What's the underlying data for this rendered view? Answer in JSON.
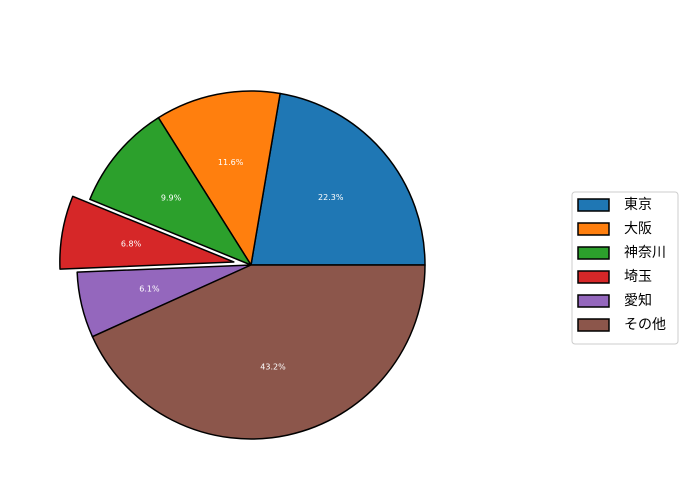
{
  "chart_data": {
    "type": "pie",
    "categories": [
      "東京",
      "大阪",
      "神奈川",
      "埼玉",
      "愛知",
      "その他"
    ],
    "values": [
      22.3,
      11.6,
      9.9,
      6.8,
      6.1,
      43.2
    ],
    "value_labels": [
      "22.3%",
      "11.6%",
      "9.9%",
      "6.8%",
      "6.1%",
      "43.2%"
    ],
    "colors": [
      "#1f77b4",
      "#ff7f0e",
      "#2ca02c",
      "#d62728",
      "#9467bd",
      "#8c564b"
    ],
    "explode": [
      0,
      0,
      0,
      0.1,
      0,
      0
    ],
    "legend": "right"
  }
}
